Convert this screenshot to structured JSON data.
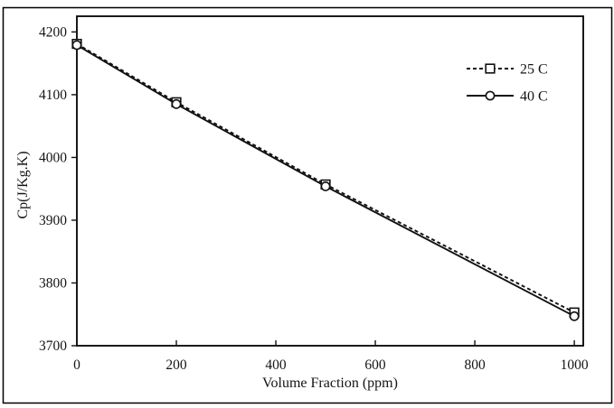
{
  "figure": {
    "background": "#ffffff",
    "border_color": "#000000",
    "line_color": "#111111"
  },
  "chart_data": {
    "type": "line",
    "title": "",
    "xlabel": "Volume Fraction (ppm)",
    "ylabel": "Cp(J/Kg.K)",
    "x": [
      0,
      200,
      500,
      1000
    ],
    "series": [
      {
        "name": "25 C",
        "values": [
          4181,
          4088,
          3957,
          3753
        ],
        "line_style": "dashed",
        "marker": "square",
        "color": "#111111"
      },
      {
        "name": "40 C",
        "values": [
          4179,
          4085,
          3954,
          3747
        ],
        "line_style": "solid",
        "marker": "circle",
        "color": "#111111"
      }
    ],
    "xticks": [
      0,
      200,
      400,
      600,
      800,
      1000
    ],
    "yticks": [
      3700,
      3800,
      3900,
      4000,
      4100,
      4200
    ],
    "xlim": [
      0,
      1018
    ],
    "ylim": [
      3700,
      4225
    ],
    "grid": false,
    "legend_position": "inside-upper-right"
  }
}
